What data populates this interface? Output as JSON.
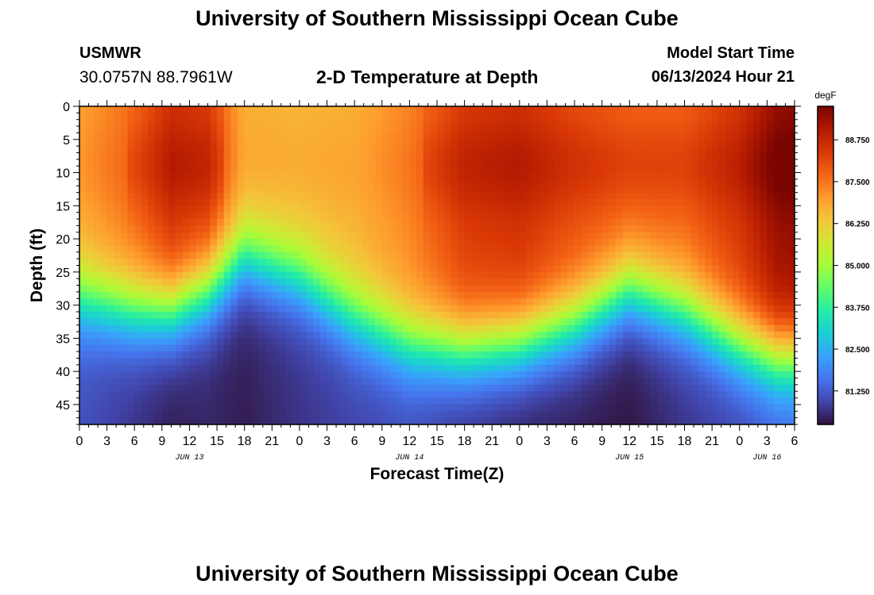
{
  "header": {
    "title": "University of Southern Mississippi Ocean Cube",
    "station_id": "USMWR",
    "coordinates": "30.0757N  88.7961W",
    "plot_title": "2-D Temperature at Depth",
    "model_start_label": "Model Start Time",
    "model_start_value": "06/13/2024 Hour 21"
  },
  "footer": {
    "title": "University of Southern Mississippi Ocean Cube"
  },
  "colors": {
    "background": "#ffffff",
    "axis": "#000000",
    "colormap": [
      "#30123b",
      "#4145ab",
      "#4675ed",
      "#39a2fc",
      "#1bcfd4",
      "#24eca6",
      "#61fc6c",
      "#a4fc3b",
      "#d1e834",
      "#f3c63a",
      "#fe9b2d",
      "#f36315",
      "#d93806",
      "#b11901",
      "#7a0402"
    ]
  },
  "chart_data": {
    "type": "heatmap",
    "title": "2-D Temperature at Depth",
    "xlabel": "Forecast Time(Z)",
    "ylabel": "Depth (ft)",
    "x_unit": "hours since 2024-06-13 00Z",
    "xlim": [
      0,
      78
    ],
    "ylim": [
      0,
      48
    ],
    "y_inverted": true,
    "x_tick_labels": [
      "0",
      "3",
      "6",
      "9",
      "12",
      "15",
      "18",
      "21",
      "0",
      "3",
      "6",
      "9",
      "12",
      "15",
      "18",
      "21",
      "0",
      "3",
      "6",
      "9",
      "12",
      "15",
      "18",
      "21",
      "0",
      "3",
      "6"
    ],
    "y_ticks": [
      0,
      5,
      10,
      15,
      20,
      25,
      30,
      35,
      40,
      45
    ],
    "date_labels": [
      {
        "label": "JUN 13",
        "x": 12
      },
      {
        "label": "JUN 14",
        "x": 36
      },
      {
        "label": "JUN 15",
        "x": 60
      },
      {
        "label": "JUN 16",
        "x": 75
      }
    ],
    "colorbar": {
      "unit": "degF",
      "range": [
        80.25,
        89.75
      ],
      "tick_labels": [
        "88.750",
        "87.500",
        "86.250",
        "85.000",
        "83.750",
        "82.500",
        "81.250"
      ]
    },
    "field_params": {
      "time_hours": [
        0,
        6,
        10,
        14,
        18,
        24,
        30,
        36,
        42,
        48,
        54,
        60,
        66,
        72,
        76,
        78
      ],
      "surface_degF": [
        86.9,
        87.6,
        88.5,
        88.3,
        86.7,
        86.6,
        86.7,
        87.3,
        88.3,
        88.5,
        88.0,
        87.7,
        87.7,
        88.4,
        89.3,
        89.4
      ],
      "thermocline_depth_ft": [
        29,
        31,
        31,
        28,
        23,
        26,
        32,
        36,
        37,
        36,
        33,
        28,
        31,
        36,
        38,
        38
      ],
      "bottom_degF": [
        81.1,
        80.7,
        80.4,
        80.5,
        80.4,
        80.7,
        80.9,
        81.0,
        80.6,
        80.4,
        80.4,
        80.3,
        80.7,
        80.9,
        81.2,
        81.3
      ]
    }
  }
}
